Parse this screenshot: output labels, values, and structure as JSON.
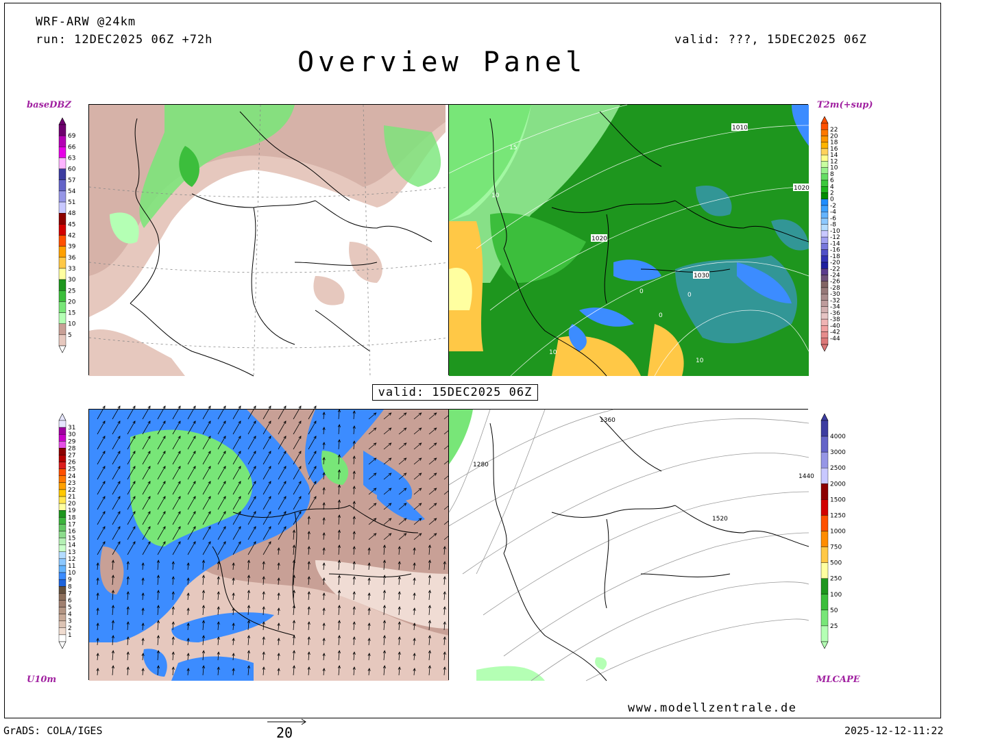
{
  "header": {
    "model": "WRF-ARW @24km",
    "run": "run: 12DEC2025 06Z +72h",
    "valid_top": "valid: ???, 15DEC2025 06Z",
    "title": "Overview Panel",
    "valid_mid": "valid: 15DEC2025 06Z"
  },
  "footer": {
    "left": "GrADS: COLA/IGES",
    "vector_ref": "20",
    "right": "2025-12-12-11:22",
    "url": "www.modellzentrale.de"
  },
  "panels": {
    "reflectivity": {
      "label": "baseDBZ",
      "legend": [
        "69",
        "66",
        "63",
        "60",
        "57",
        "54",
        "51",
        "48",
        "45",
        "42",
        "39",
        "36",
        "33",
        "30",
        "25",
        "20",
        "15",
        "10",
        "5"
      ],
      "colors": [
        "#6e006e",
        "#b400b4",
        "#e600e6",
        "#ffb4ff",
        "#3c3ca0",
        "#6464c8",
        "#9696e6",
        "#c8c8ff",
        "#8c0000",
        "#d20000",
        "#ff5000",
        "#ffa000",
        "#ffc846",
        "#ffffa0",
        "#1e961e",
        "#3cbe3c",
        "#78e678",
        "#b4ffb4",
        "#c8a096",
        "#e6c8be",
        "#ffffff"
      ]
    },
    "temperature": {
      "label": "T2m(+sup)",
      "legend": [
        "22",
        "20",
        "18",
        "16",
        "14",
        "12",
        "10",
        "8",
        "6",
        "4",
        "2",
        "0",
        "-2",
        "-4",
        "-6",
        "-8",
        "-10",
        "-12",
        "-14",
        "-16",
        "-18",
        "-20",
        "-22",
        "-24",
        "-26",
        "-28",
        "-30",
        "-32",
        "-34",
        "-36",
        "-38",
        "-40",
        "-42",
        "-44"
      ],
      "isobars": [
        "1010",
        "1020",
        "1020",
        "1030",
        "15",
        "10",
        "10",
        "0",
        "0",
        "0",
        "10"
      ]
    },
    "wind": {
      "label": "U10m",
      "legend": [
        "31",
        "30",
        "29",
        "28",
        "27",
        "26",
        "25",
        "24",
        "23",
        "22",
        "21",
        "20",
        "19",
        "18",
        "17",
        "16",
        "15",
        "14",
        "13",
        "12",
        "11",
        "10",
        "9",
        "8",
        "7",
        "6",
        "5",
        "4",
        "3",
        "2",
        "1"
      ]
    },
    "cape": {
      "label": "MLCAPE",
      "legend": [
        "4000",
        "3000",
        "2500",
        "2000",
        "1500",
        "1250",
        "1000",
        "750",
        "500",
        "250",
        "100",
        "50",
        "25"
      ],
      "contours": [
        "1360",
        "1280",
        "1440",
        "1520"
      ]
    }
  }
}
